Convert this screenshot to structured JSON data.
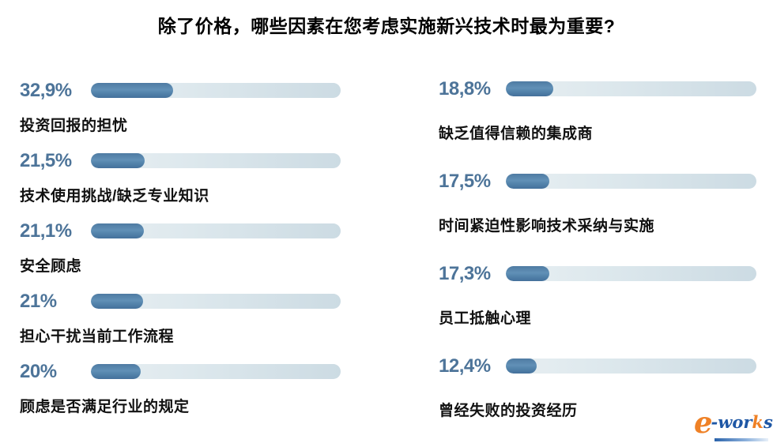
{
  "title": "除了价格，哪些因素在您考虑实施新兴技术时最为重要?",
  "colors": {
    "accent_text": "#4d7499",
    "bar_fill": "#517ea6",
    "bar_track": "#d7e3e9",
    "label_text": "#111111",
    "logo_blue": "#1e57a5",
    "logo_orange": "#ef8126"
  },
  "chart_data": {
    "type": "bar",
    "title": "除了价格，哪些因素在您考虑实施新兴技术时最为重要?",
    "unit": "%",
    "xlim": [
      0,
      100
    ],
    "orientation": "horizontal",
    "columns": [
      {
        "items": [
          {
            "pct_label": "32,9%",
            "value": 32.9,
            "label": "投资回报的担忧"
          },
          {
            "pct_label": "21,5%",
            "value": 21.5,
            "label": "技术使用挑战/缺乏专业知识"
          },
          {
            "pct_label": "21,1%",
            "value": 21.1,
            "label": "安全顾虑"
          },
          {
            "pct_label": "21%",
            "value": 21,
            "label": "担心干扰当前工作流程"
          },
          {
            "pct_label": "20%",
            "value": 20,
            "label": "顾虑是否满足行业的规定"
          }
        ]
      },
      {
        "items": [
          {
            "pct_label": "18,8%",
            "value": 18.8,
            "label": "缺乏值得信赖的集成商"
          },
          {
            "pct_label": "17,5%",
            "value": 17.5,
            "label": "时间紧迫性影响技术采纳与实施"
          },
          {
            "pct_label": "17,3%",
            "value": 17.3,
            "label": "员工抵触心理"
          },
          {
            "pct_label": "12,4%",
            "value": 12.4,
            "label": "曾经失败的投资经历"
          }
        ]
      }
    ]
  },
  "logo": {
    "e": "e",
    "part_blue1": "-wor",
    "part_orange": "k",
    "part_blue2": "s"
  }
}
